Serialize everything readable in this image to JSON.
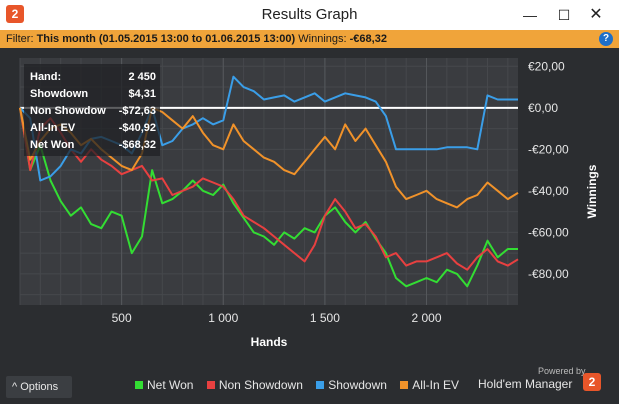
{
  "window": {
    "title": "Results Graph",
    "logo_text": "2",
    "controls": {
      "minimize": "—",
      "maximize": "☐",
      "close": "✕"
    }
  },
  "filter": {
    "label": "Filter:",
    "value": "This month (01.05.2015 13:00 to 01.06.2015 13:00)",
    "winnings_label": "Winnings:",
    "winnings_value": "-€68,32",
    "help": "?"
  },
  "tooltip": {
    "rows": [
      {
        "label": "Hand:",
        "value": "2 450"
      },
      {
        "label": "Showdown",
        "value": "$4,31"
      },
      {
        "label": "Non Showdow",
        "value": "-$72,63"
      },
      {
        "label": "All-In EV",
        "value": "-$40,92"
      },
      {
        "label": "Net Won",
        "value": "-$68,32"
      }
    ]
  },
  "options_button": {
    "icon": "chevron-up-icon",
    "glyph": "^",
    "label": "Options"
  },
  "legend": [
    {
      "name": "Net Won",
      "color": "#33dd33"
    },
    {
      "name": "Non Showdown",
      "color": "#e84040"
    },
    {
      "name": "Showdown",
      "color": "#3a9ee8"
    },
    {
      "name": "All-In EV",
      "color": "#f0922a"
    }
  ],
  "brand": {
    "powered": "Powered by",
    "name": "Hold'em Manager",
    "logo_text": "2"
  },
  "chart_data": {
    "type": "line",
    "xlabel": "Hands",
    "ylabel": "Winnings",
    "xlim": [
      0,
      2450
    ],
    "ylim": [
      -95,
      24
    ],
    "xticks": [
      {
        "v": 500,
        "label": "500"
      },
      {
        "v": 1000,
        "label": "1 000"
      },
      {
        "v": 1500,
        "label": "1 500"
      },
      {
        "v": 2000,
        "label": "2 000"
      }
    ],
    "yticks": [
      {
        "v": 20,
        "label": "€20,00"
      },
      {
        "v": 0,
        "label": "€0,00"
      },
      {
        "v": -20,
        "label": "-€20,00"
      },
      {
        "v": -40,
        "label": "-€40,00"
      },
      {
        "v": -60,
        "label": "-€60,00"
      },
      {
        "v": -80,
        "label": "-€80,00"
      }
    ],
    "grid": true,
    "x": [
      0,
      50,
      100,
      150,
      200,
      250,
      300,
      350,
      400,
      450,
      500,
      550,
      600,
      650,
      700,
      750,
      800,
      850,
      900,
      950,
      1000,
      1050,
      1100,
      1150,
      1200,
      1250,
      1300,
      1350,
      1400,
      1450,
      1500,
      1550,
      1600,
      1650,
      1700,
      1750,
      1800,
      1850,
      1900,
      1950,
      2000,
      2050,
      2100,
      2150,
      2200,
      2250,
      2300,
      2350,
      2400,
      2450
    ],
    "series": [
      {
        "name": "Net Won",
        "color": "#33dd33",
        "values": [
          0,
          -30,
          -18,
          -35,
          -45,
          -52,
          -48,
          -56,
          -58,
          -50,
          -52,
          -70,
          -62,
          -30,
          -46,
          -44,
          -40,
          -35,
          -40,
          -42,
          -37,
          -46,
          -53,
          -60,
          -62,
          -66,
          -60,
          -63,
          -58,
          -60,
          -52,
          -48,
          -55,
          -60,
          -55,
          -63,
          -70,
          -82,
          -86,
          -84,
          -82,
          -84,
          -78,
          -80,
          -86,
          -76,
          -64,
          -72,
          -68,
          -68
        ]
      },
      {
        "name": "Non Showdown",
        "color": "#e84040",
        "values": [
          0,
          -30,
          -10,
          -5,
          -12,
          -20,
          -26,
          -20,
          -25,
          -28,
          -32,
          -30,
          -28,
          -35,
          -34,
          -42,
          -40,
          -38,
          -34,
          -36,
          -38,
          -44,
          -52,
          -55,
          -58,
          -62,
          -66,
          -70,
          -74,
          -66,
          -52,
          -44,
          -50,
          -58,
          -56,
          -62,
          -72,
          -70,
          -76,
          -74,
          -74,
          -72,
          -70,
          -75,
          -78,
          -72,
          -68,
          -74,
          -76,
          -73
        ]
      },
      {
        "name": "Showdown",
        "color": "#3a9ee8",
        "values": [
          0,
          -5,
          -35,
          -33,
          -28,
          -20,
          -22,
          -15,
          -14,
          -16,
          -18,
          -22,
          -12,
          0,
          -18,
          -16,
          -10,
          -8,
          -5,
          -8,
          -6,
          15,
          10,
          8,
          4,
          5,
          6,
          3,
          5,
          7,
          3,
          5,
          7,
          6,
          5,
          3,
          -4,
          -20,
          -20,
          -20,
          -20,
          -20,
          -19,
          -19,
          -19,
          -20,
          6,
          4,
          4,
          4
        ]
      },
      {
        "name": "All-In EV",
        "color": "#f0922a",
        "values": [
          0,
          -25,
          -16,
          -10,
          -8,
          -12,
          -18,
          -15,
          -20,
          -24,
          -28,
          -30,
          -22,
          0,
          -2,
          -6,
          -10,
          -4,
          -12,
          -18,
          -20,
          -8,
          -16,
          -20,
          -24,
          -26,
          -30,
          -32,
          -26,
          -20,
          -14,
          -20,
          -8,
          -16,
          -10,
          -18,
          -26,
          -38,
          -44,
          -42,
          -40,
          -44,
          -46,
          -48,
          -44,
          -42,
          -36,
          -40,
          -44,
          -41
        ]
      }
    ]
  }
}
